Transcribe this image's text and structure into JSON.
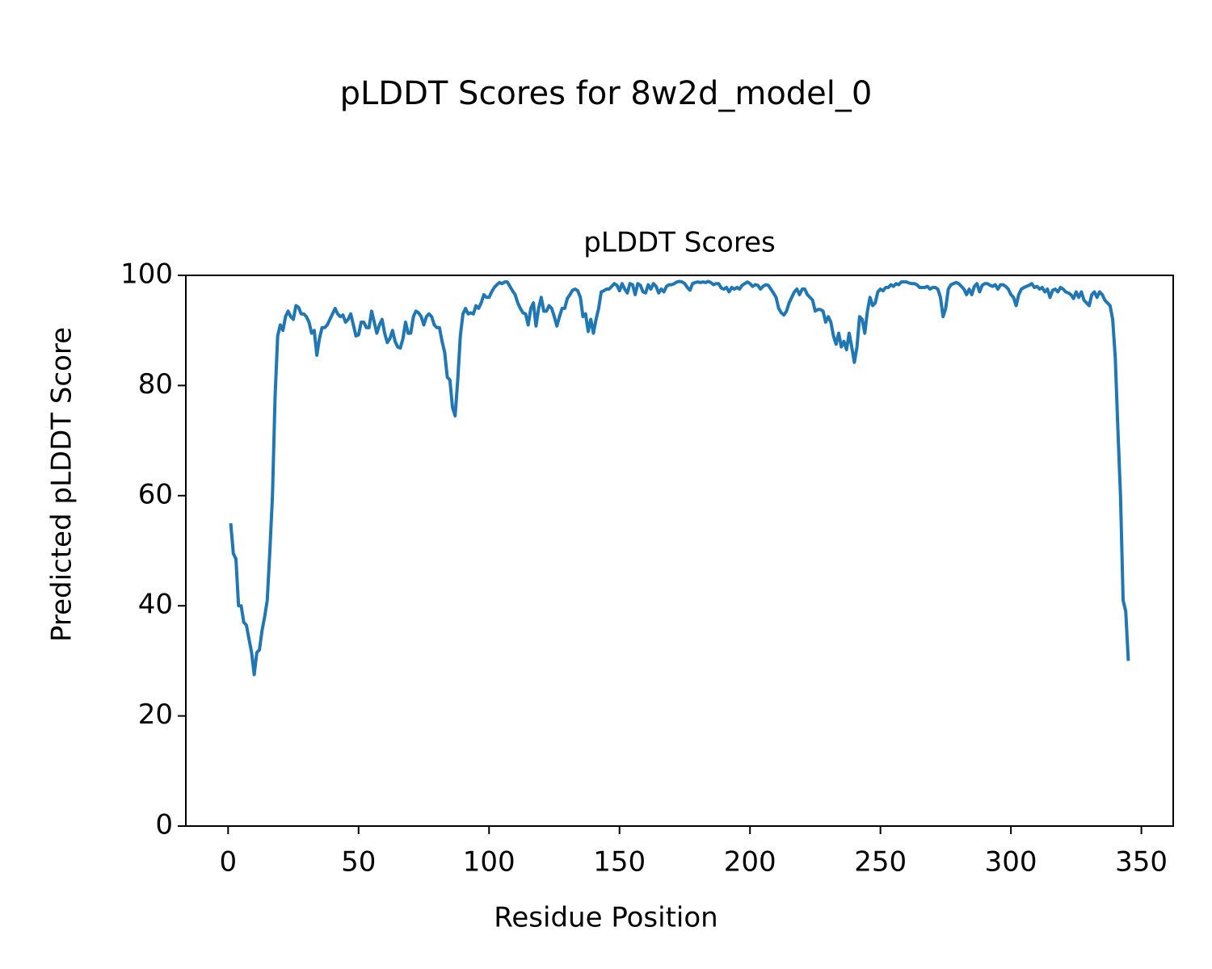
{
  "chart_data": {
    "type": "line",
    "title": "pLDDT Scores for 8w2d_model_0",
    "subtitle": "pLDDT Scores",
    "xlabel": "Residue Position",
    "ylabel": "Predicted pLDDT Score",
    "xlim": [
      -16.2,
      362.2
    ],
    "ylim": [
      0,
      100
    ],
    "xticks": [
      0,
      50,
      100,
      150,
      200,
      250,
      300,
      350
    ],
    "yticks": [
      0,
      20,
      40,
      60,
      80,
      100
    ],
    "grid": false,
    "x": [
      1,
      2,
      3,
      4,
      5,
      6,
      7,
      8,
      9,
      10,
      11,
      12,
      13,
      14,
      15,
      16,
      17,
      18,
      19,
      20,
      21,
      22,
      23,
      24,
      25,
      26,
      27,
      28,
      29,
      30,
      31,
      32,
      33,
      34,
      35,
      36,
      37,
      38,
      39,
      40,
      41,
      42,
      43,
      44,
      45,
      46,
      47,
      48,
      49,
      50,
      51,
      52,
      53,
      54,
      55,
      56,
      57,
      58,
      59,
      60,
      61,
      62,
      63,
      64,
      65,
      66,
      67,
      68,
      69,
      70,
      71,
      72,
      73,
      74,
      75,
      76,
      77,
      78,
      79,
      80,
      81,
      82,
      83,
      84,
      85,
      86,
      87,
      88,
      89,
      90,
      91,
      92,
      93,
      94,
      95,
      96,
      97,
      98,
      99,
      100,
      101,
      102,
      103,
      104,
      105,
      106,
      107,
      108,
      109,
      110,
      111,
      112,
      113,
      114,
      115,
      116,
      117,
      118,
      119,
      120,
      121,
      122,
      123,
      124,
      125,
      126,
      127,
      128,
      129,
      130,
      131,
      132,
      133,
      134,
      135,
      136,
      137,
      138,
      139,
      140,
      141,
      142,
      143,
      144,
      145,
      146,
      147,
      148,
      149,
      150,
      151,
      152,
      153,
      154,
      155,
      156,
      157,
      158,
      159,
      160,
      161,
      162,
      163,
      164,
      165,
      166,
      167,
      168,
      169,
      170,
      171,
      172,
      173,
      174,
      175,
      176,
      177,
      178,
      179,
      180,
      181,
      182,
      183,
      184,
      185,
      186,
      187,
      188,
      189,
      190,
      191,
      192,
      193,
      194,
      195,
      196,
      197,
      198,
      199,
      200,
      201,
      202,
      203,
      204,
      205,
      206,
      207,
      208,
      209,
      210,
      211,
      212,
      213,
      214,
      215,
      216,
      217,
      218,
      219,
      220,
      221,
      222,
      223,
      224,
      225,
      226,
      227,
      228,
      229,
      230,
      231,
      232,
      233,
      234,
      235,
      236,
      237,
      238,
      239,
      240,
      241,
      242,
      243,
      244,
      245,
      246,
      247,
      248,
      249,
      250,
      251,
      252,
      253,
      254,
      255,
      256,
      257,
      258,
      259,
      260,
      261,
      262,
      263,
      264,
      265,
      266,
      267,
      268,
      269,
      270,
      271,
      272,
      273,
      274,
      275,
      276,
      277,
      278,
      279,
      280,
      281,
      282,
      283,
      284,
      285,
      286,
      287,
      288,
      289,
      290,
      291,
      292,
      293,
      294,
      295,
      296,
      297,
      298,
      299,
      300,
      301,
      302,
      303,
      304,
      305,
      306,
      307,
      308,
      309,
      310,
      311,
      312,
      313,
      314,
      315,
      316,
      317,
      318,
      319,
      320,
      321,
      322,
      323,
      324,
      325,
      326,
      327,
      328,
      329,
      330,
      331,
      332,
      333,
      334,
      335,
      336,
      337,
      338,
      339,
      340,
      341,
      342,
      343,
      344,
      345
    ],
    "series": [
      {
        "color": "#1f77b4",
        "values": [
          55,
          49.5,
          48.5,
          40,
          40,
          37,
          36.5,
          34,
          31.5,
          27.5,
          31.5,
          32,
          35.5,
          38,
          41,
          50,
          60,
          78,
          89,
          91,
          90,
          92.5,
          93.5,
          92.5,
          92,
          94.5,
          94.2,
          93,
          93,
          92.5,
          91.5,
          89.5,
          90,
          85.5,
          88.5,
          90.5,
          90.5,
          91,
          92,
          93,
          94,
          93,
          92.5,
          92.8,
          91.5,
          92,
          93,
          91,
          89,
          89.2,
          91.5,
          91.5,
          90.5,
          90.5,
          93.5,
          91.5,
          89.5,
          91,
          92,
          89.5,
          87.8,
          88.5,
          90,
          88,
          87,
          86.8,
          88.5,
          91.5,
          89.5,
          89.5,
          92.5,
          93.5,
          93.2,
          92.5,
          91,
          92.5,
          93,
          92.5,
          91,
          90.5,
          90.5,
          88,
          86,
          81.5,
          81,
          76,
          74.5,
          81,
          89,
          93,
          94,
          93,
          93.2,
          93,
          94.5,
          94,
          95,
          96.5,
          96,
          96,
          97,
          97.8,
          98.3,
          98.7,
          98.5,
          98.8,
          98.8,
          98,
          97.2,
          96.5,
          95,
          94,
          93.2,
          93,
          91,
          94,
          95,
          90.8,
          94,
          96,
          93.5,
          93.5,
          94.5,
          94,
          92.5,
          90.8,
          92.5,
          94,
          94,
          95.8,
          96.5,
          97.3,
          97.5,
          97.2,
          96,
          92.5,
          93,
          89.8,
          92,
          89.5,
          92,
          94,
          97,
          97.2,
          97.5,
          97.5,
          98,
          98.5,
          98.2,
          97.2,
          98.5,
          97.5,
          96.8,
          98.5,
          98.3,
          96.5,
          98.5,
          98.2,
          97,
          96.8,
          98.3,
          97.5,
          98.5,
          98,
          96.8,
          97.5,
          97,
          98,
          98.3,
          98.3,
          98.5,
          98.8,
          98.9,
          98.8,
          98.5,
          97.8,
          97.3,
          98.5,
          98.7,
          98.8,
          98.7,
          98.8,
          98.7,
          98.9,
          98.7,
          98.3,
          98.5,
          98.5,
          97.7,
          97.5,
          97.8,
          97,
          97.8,
          97.5,
          97.8,
          97.5,
          98.2,
          98.5,
          98.8,
          98.5,
          98,
          98.3,
          98.2,
          97.5,
          98,
          98.3,
          98.2,
          97.5,
          96.8,
          96,
          94,
          93.2,
          92.8,
          93.5,
          95,
          96,
          97,
          97.5,
          96.5,
          97.5,
          97.5,
          96.5,
          96,
          95.5,
          93.5,
          93.8,
          93.8,
          93.5,
          91.5,
          92.5,
          91.5,
          89,
          87.5,
          89.5,
          87,
          88,
          86.5,
          89.5,
          87,
          84.2,
          87,
          92.5,
          92,
          89.5,
          93.5,
          96,
          94.5,
          95,
          97,
          97.5,
          97.2,
          97.8,
          97.8,
          98.3,
          98,
          98.5,
          98.3,
          98.8,
          98.8,
          98.8,
          98.6,
          98.5,
          98.5,
          98.3,
          97.8,
          97.8,
          97.8,
          98,
          97.5,
          97.8,
          97.8,
          97.5,
          96,
          92.5,
          94,
          97.5,
          98.3,
          98.5,
          98.7,
          98.5,
          98,
          97.5,
          96.5,
          97.5,
          96.5,
          98,
          98.5,
          97,
          98.2,
          98.5,
          98.5,
          98.2,
          98,
          98.3,
          97.5,
          98.3,
          98.3,
          98,
          97.5,
          96.5,
          96,
          94.5,
          96.5,
          97.5,
          97.8,
          98,
          98.2,
          98.5,
          97.8,
          98,
          97.5,
          97.8,
          97,
          97.5,
          96,
          97.3,
          97.5,
          97,
          97.8,
          97.5,
          97,
          96.8,
          96.5,
          95.8,
          97,
          96,
          97,
          95.5,
          95,
          94.5,
          96.5,
          97,
          96,
          97,
          96.5,
          95.5,
          95,
          94.5,
          92,
          85,
          72,
          60,
          41,
          39,
          30
        ]
      }
    ]
  }
}
